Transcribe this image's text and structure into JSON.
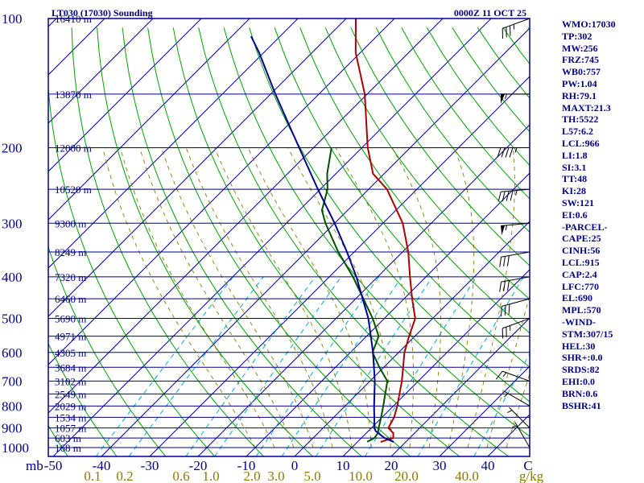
{
  "chart_data": {
    "type": "skew-t",
    "title": "LT030 (17030) Sounding",
    "valid_time": "0000Z 11 OCT 25",
    "pressure_axis": {
      "unit": "mb",
      "ticks": [
        100,
        200,
        300,
        400,
        500,
        600,
        700,
        800,
        900,
        1000
      ],
      "range": [
        100,
        1000
      ]
    },
    "temperature_axis": {
      "unit": "C",
      "ticks": [
        -50,
        -40,
        -30,
        -20,
        -10,
        0,
        10,
        20,
        30,
        40
      ],
      "range": [
        -50,
        50
      ]
    },
    "mixing_ratio_axis": {
      "unit": "g/kg",
      "ticks": [
        "0.1",
        "0.2",
        "0.6",
        "1.0",
        "2.0",
        "3.0",
        "5.0",
        "10.0",
        "20.0",
        "40.0"
      ]
    },
    "height_labels": [
      {
        "p": 100,
        "label": "16410 m"
      },
      {
        "p": 150,
        "label": "13870 m"
      },
      {
        "p": 200,
        "label": "12000 m"
      },
      {
        "p": 250,
        "label": "10520 m"
      },
      {
        "p": 300,
        "label": "9300 m"
      },
      {
        "p": 350,
        "label": "8249 m"
      },
      {
        "p": 400,
        "label": "7320 m"
      },
      {
        "p": 450,
        "label": "6460 m"
      },
      {
        "p": 500,
        "label": "5690 m"
      },
      {
        "p": 550,
        "label": "4971 m"
      },
      {
        "p": 600,
        "label": "4305 m"
      },
      {
        "p": 650,
        "label": "3684 m"
      },
      {
        "p": 700,
        "label": "3102 m"
      },
      {
        "p": 750,
        "label": "2549 m"
      },
      {
        "p": 800,
        "label": "2029 m"
      },
      {
        "p": 850,
        "label": "1534 m"
      },
      {
        "p": 900,
        "label": "1057 m"
      },
      {
        "p": 950,
        "label": "603 m"
      },
      {
        "p": 1000,
        "label": "168 m"
      }
    ],
    "series": [
      {
        "name": "Temperature",
        "color": "#aa0000",
        "points": [
          {
            "p": 970,
            "t": 14.8
          },
          {
            "p": 950,
            "t": 16.6
          },
          {
            "p": 925,
            "t": 15.6
          },
          {
            "p": 900,
            "t": 13.5
          },
          {
            "p": 850,
            "t": 12.5
          },
          {
            "p": 800,
            "t": 10.8
          },
          {
            "p": 700,
            "t": 6.6
          },
          {
            "p": 600,
            "t": 1.2
          },
          {
            "p": 550,
            "t": -1.2
          },
          {
            "p": 500,
            "t": -3.6
          },
          {
            "p": 450,
            "t": -8.3
          },
          {
            "p": 400,
            "t": -13.3
          },
          {
            "p": 350,
            "t": -18.8
          },
          {
            "p": 300,
            "t": -25.9
          },
          {
            "p": 280,
            "t": -29.8
          },
          {
            "p": 250,
            "t": -36.2
          },
          {
            "p": 230,
            "t": -42.3
          },
          {
            "p": 200,
            "t": -48.8
          },
          {
            "p": 150,
            "t": -60.5
          },
          {
            "p": 120,
            "t": -71.0
          },
          {
            "p": 100,
            "t": -78.0
          }
        ]
      },
      {
        "name": "Dewpoint",
        "color": "#005000",
        "points": [
          {
            "p": 970,
            "t": 12.0
          },
          {
            "p": 950,
            "t": 12.7
          },
          {
            "p": 925,
            "t": 12.4
          },
          {
            "p": 900,
            "t": 11.5
          },
          {
            "p": 850,
            "t": 9.8
          },
          {
            "p": 800,
            "t": 7.9
          },
          {
            "p": 700,
            "t": 3.6
          },
          {
            "p": 650,
            "t": -0.9
          },
          {
            "p": 600,
            "t": -5.4
          },
          {
            "p": 550,
            "t": -7.5
          },
          {
            "p": 500,
            "t": -12.4
          },
          {
            "p": 450,
            "t": -18.4
          },
          {
            "p": 400,
            "t": -25.1
          },
          {
            "p": 350,
            "t": -33.3
          },
          {
            "p": 300,
            "t": -41.9
          },
          {
            "p": 280,
            "t": -45.3
          },
          {
            "p": 250,
            "t": -48.5
          },
          {
            "p": 230,
            "t": -51.8
          },
          {
            "p": 200,
            "t": -56.3
          }
        ]
      },
      {
        "name": "Parcel path",
        "color": "#000090",
        "points": [
          {
            "p": 970,
            "t": 17.5
          },
          {
            "p": 950,
            "t": 14.8
          },
          {
            "p": 915,
            "t": 11.5
          },
          {
            "p": 900,
            "t": 10.6
          },
          {
            "p": 850,
            "t": 8.4
          },
          {
            "p": 800,
            "t": 6.0
          },
          {
            "p": 700,
            "t": 1.0
          },
          {
            "p": 600,
            "t": -5.3
          },
          {
            "p": 500,
            "t": -13.3
          },
          {
            "p": 400,
            "t": -24.4
          },
          {
            "p": 350,
            "t": -31.5
          },
          {
            "p": 300,
            "t": -40.0
          },
          {
            "p": 250,
            "t": -50.5
          },
          {
            "p": 200,
            "t": -63.0
          },
          {
            "p": 150,
            "t": -79.0
          },
          {
            "p": 120,
            "t": -91.0
          },
          {
            "p": 110,
            "t": -96.0
          }
        ]
      }
    ],
    "wind_barbs": [
      {
        "p": 100,
        "direction": 250,
        "speed_kt": 35
      },
      {
        "p": 150,
        "direction": 270,
        "speed_kt": 55
      },
      {
        "p": 200,
        "direction": 270,
        "speed_kt": 45
      },
      {
        "p": 250,
        "direction": 265,
        "speed_kt": 45
      },
      {
        "p": 300,
        "direction": 265,
        "speed_kt": 55
      },
      {
        "p": 350,
        "direction": 260,
        "speed_kt": 30
      },
      {
        "p": 400,
        "direction": 260,
        "speed_kt": 30
      },
      {
        "p": 450,
        "direction": 255,
        "speed_kt": 30
      },
      {
        "p": 500,
        "direction": 250,
        "speed_kt": 25
      },
      {
        "p": 700,
        "direction": 290,
        "speed_kt": 15
      },
      {
        "p": 800,
        "direction": 300,
        "speed_kt": 5
      },
      {
        "p": 900,
        "direction": 315,
        "speed_kt": 5
      },
      {
        "p": 1000,
        "direction": 330,
        "speed_kt": 3
      }
    ],
    "indices": [
      "WMO:17030",
      "TP:302",
      "MW:256",
      "FRZ:745",
      "WB0:757",
      "PW:1.04",
      "RH:79.1",
      "MAXT:21.3",
      "TH:5522",
      "L57:6.2",
      "LCL:966",
      "LI:1.8",
      "SI:3.1",
      "TT:48",
      "KI:28",
      "SW:121",
      "EI:0.6",
      "-PARCEL-",
      "CAPE:25",
      "CINH:56",
      "LCL:915",
      "CAP:2.4",
      "LFC:770",
      "EL:690",
      "MPL:570",
      "-WIND-",
      "STM:307/15",
      "HEL:30",
      "SHR+:0.0",
      "SRDS:82",
      "EHI:0.0",
      "BRN:0.6",
      "BSHR:41"
    ]
  }
}
